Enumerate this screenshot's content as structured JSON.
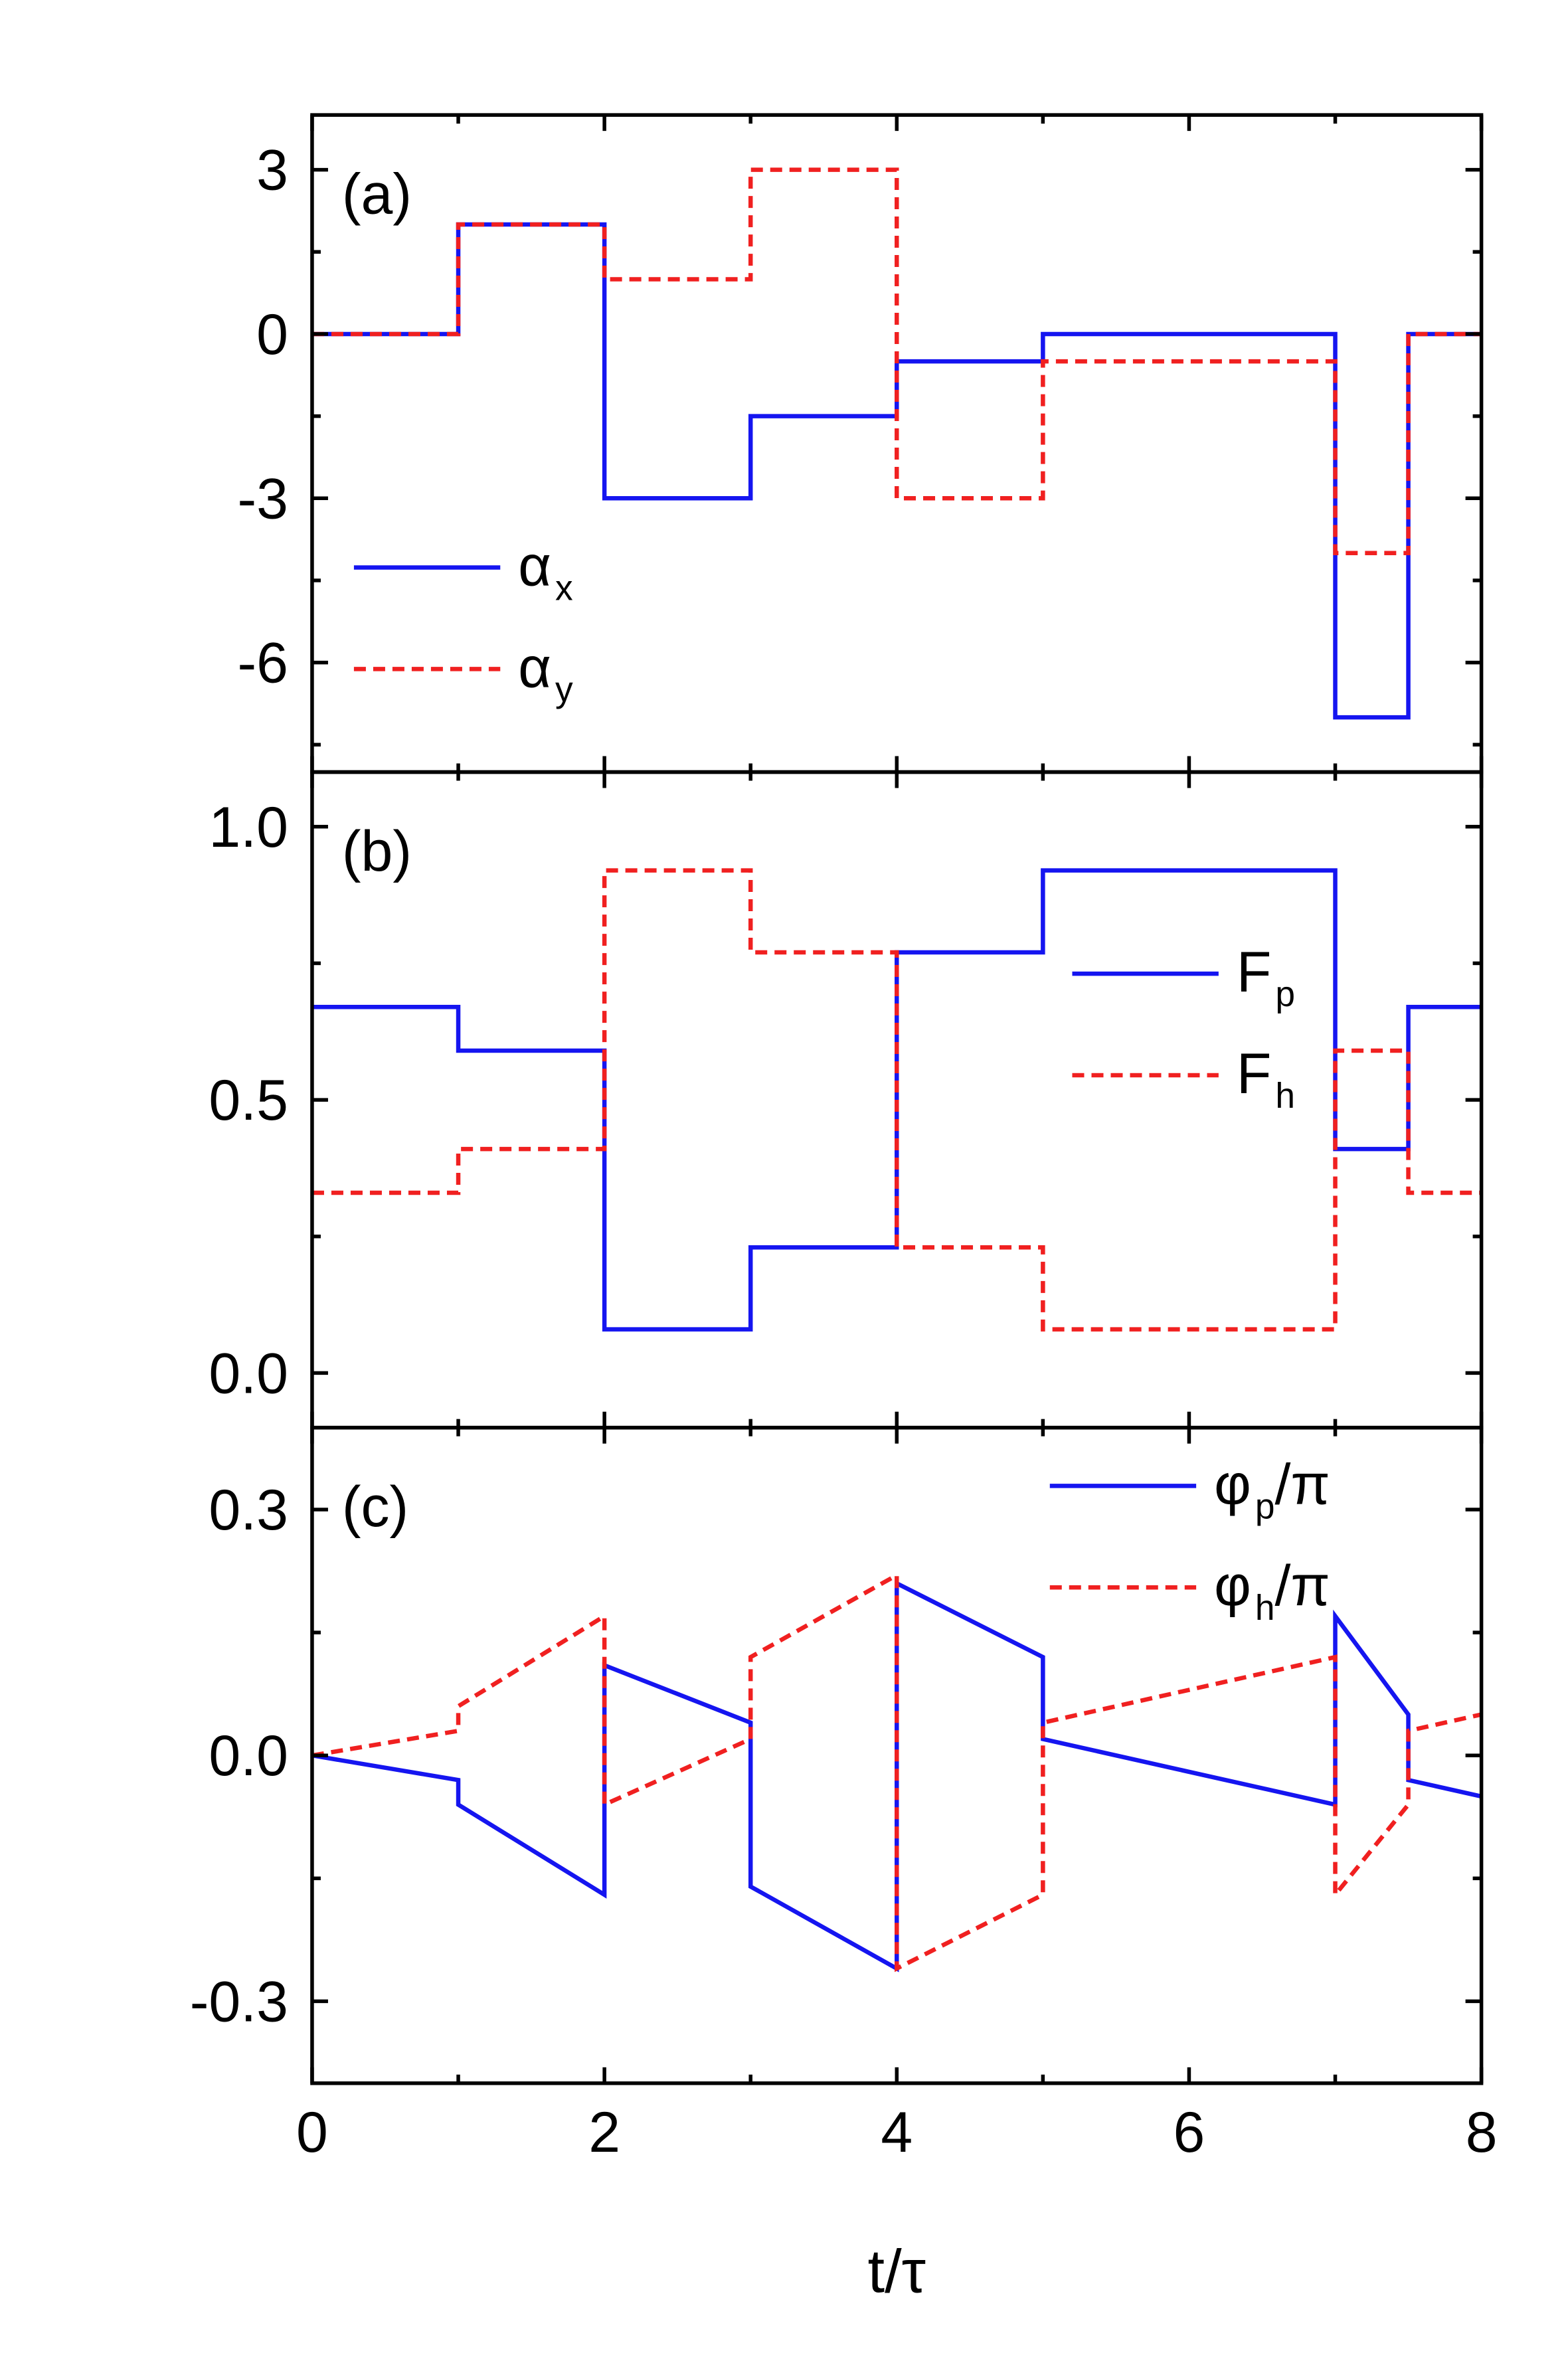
{
  "chart_data": [
    {
      "type": "line",
      "panel_label": "(a)",
      "legend": "lower left",
      "xlim": [
        0,
        8
      ],
      "xticks": [
        0,
        2,
        4,
        6,
        8
      ],
      "xminor_ticks": [
        1,
        3,
        5,
        7
      ],
      "ylim": [
        -8,
        4
      ],
      "yticks": [
        -6,
        -3,
        0,
        3
      ],
      "yminor_ticks": [
        -7.5,
        -4.5,
        -1.5,
        1.5
      ],
      "series": [
        {
          "name": "αx",
          "color": "#1515f0",
          "dashed": false,
          "x": [
            0,
            1,
            1,
            2,
            2,
            3,
            3,
            4,
            4,
            5,
            5,
            7,
            7,
            7.5,
            7.5,
            8
          ],
          "values": [
            0,
            0,
            2,
            2,
            -3,
            -3,
            -1.5,
            -1.5,
            -0.5,
            -0.5,
            0,
            0,
            -7,
            -7,
            0,
            0
          ]
        },
        {
          "name": "αy",
          "color": "#f02020",
          "dashed": true,
          "x": [
            0,
            1,
            1,
            2,
            2,
            3,
            3,
            4,
            4,
            5,
            5,
            7,
            7,
            7.5,
            7.5,
            8
          ],
          "values": [
            0,
            0,
            2,
            2,
            1,
            1,
            3,
            3,
            -3,
            -3,
            -0.5,
            -0.5,
            -4,
            -4,
            0,
            0
          ]
        }
      ]
    },
    {
      "type": "line",
      "panel_label": "(b)",
      "legend": "center right",
      "xlim": [
        0,
        8
      ],
      "xticks": [
        0,
        2,
        4,
        6,
        8
      ],
      "xminor_ticks": [
        1,
        3,
        5,
        7
      ],
      "ylim": [
        -0.1,
        1.1
      ],
      "yticks": [
        {
          "value": 0,
          "label": "0.0"
        },
        {
          "value": 0.5,
          "label": "0.5"
        },
        {
          "value": 1,
          "label": "1.0"
        }
      ],
      "yminor_ticks": [
        0.25,
        0.75
      ],
      "series": [
        {
          "name": "Fp",
          "color": "#1515f0",
          "dashed": false,
          "x": [
            0,
            1,
            1,
            2,
            2,
            3,
            3,
            4,
            4,
            5,
            5,
            7,
            7,
            7.5,
            7.5,
            8
          ],
          "values": [
            0.67,
            0.67,
            0.59,
            0.59,
            0.08,
            0.08,
            0.23,
            0.23,
            0.77,
            0.77,
            0.92,
            0.92,
            0.41,
            0.41,
            0.67,
            0.67
          ]
        },
        {
          "name": "Fh",
          "color": "#f02020",
          "dashed": true,
          "x": [
            0,
            1,
            1,
            2,
            2,
            3,
            3,
            4,
            4,
            5,
            5,
            7,
            7,
            7.5,
            7.5,
            8
          ],
          "values": [
            0.33,
            0.33,
            0.41,
            0.41,
            0.92,
            0.92,
            0.77,
            0.77,
            0.23,
            0.23,
            0.08,
            0.08,
            0.59,
            0.59,
            0.33,
            0.33
          ]
        }
      ]
    },
    {
      "type": "line",
      "panel_label": "(c)",
      "legend": "upper right",
      "xlabel": "t/τ",
      "xlim": [
        0,
        8
      ],
      "xticks": [
        0,
        2,
        4,
        6,
        8
      ],
      "xminor_ticks": [
        1,
        3,
        5,
        7
      ],
      "ylim": [
        -0.4,
        0.4
      ],
      "yticks": [
        {
          "value": -0.3,
          "label": "-0.3"
        },
        {
          "value": 0,
          "label": "0.0"
        },
        {
          "value": 0.3,
          "label": "0.3"
        }
      ],
      "yminor_ticks": [
        -0.15,
        0.15
      ],
      "series": [
        {
          "name": "φp/π",
          "color": "#1515f0",
          "dashed": false,
          "x": [
            0,
            1,
            1,
            2,
            2,
            3,
            3,
            4,
            4,
            5,
            5,
            7,
            7,
            7.5,
            7.5,
            8
          ],
          "values": [
            0,
            -0.03,
            -0.06,
            -0.17,
            0.11,
            0.04,
            -0.16,
            -0.26,
            0.21,
            0.12,
            0.02,
            -0.06,
            0.17,
            0.05,
            -0.03,
            -0.05
          ]
        },
        {
          "name": "φh/π",
          "color": "#f02020",
          "dashed": true,
          "x": [
            0,
            1,
            1,
            2,
            2,
            3,
            3,
            4,
            4,
            5,
            5,
            7,
            7,
            7.5,
            7.5,
            8
          ],
          "values": [
            0,
            0.03,
            0.06,
            0.17,
            -0.06,
            0.02,
            0.12,
            0.22,
            -0.26,
            -0.17,
            0.04,
            0.12,
            -0.17,
            -0.06,
            0.03,
            0.05
          ]
        }
      ]
    }
  ]
}
